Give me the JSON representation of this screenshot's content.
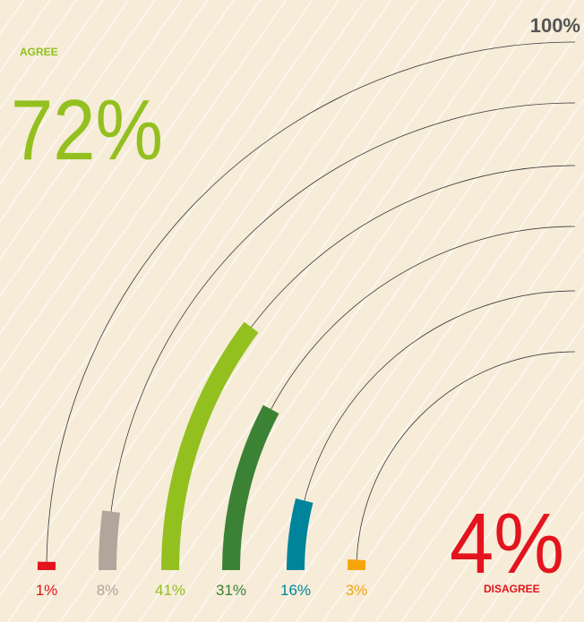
{
  "chart_data": {
    "type": "radial-bar",
    "values": [
      1,
      8,
      41,
      31,
      16,
      3
    ],
    "value_labels": [
      "1%",
      "8%",
      "41%",
      "31%",
      "16%",
      "3%"
    ],
    "colors": [
      "#e3141d",
      "#b1a59c",
      "#93c01f",
      "#3b8235",
      "#00849c",
      "#f7a40b"
    ],
    "xlim": [
      0,
      100
    ],
    "xticks": [
      {
        "value": 100,
        "label": "100%"
      }
    ],
    "annotations": {
      "agree_label": "AGREE",
      "agree_value": "72%",
      "disagree_label": "DISAGREE",
      "disagree_value": "4%"
    }
  }
}
